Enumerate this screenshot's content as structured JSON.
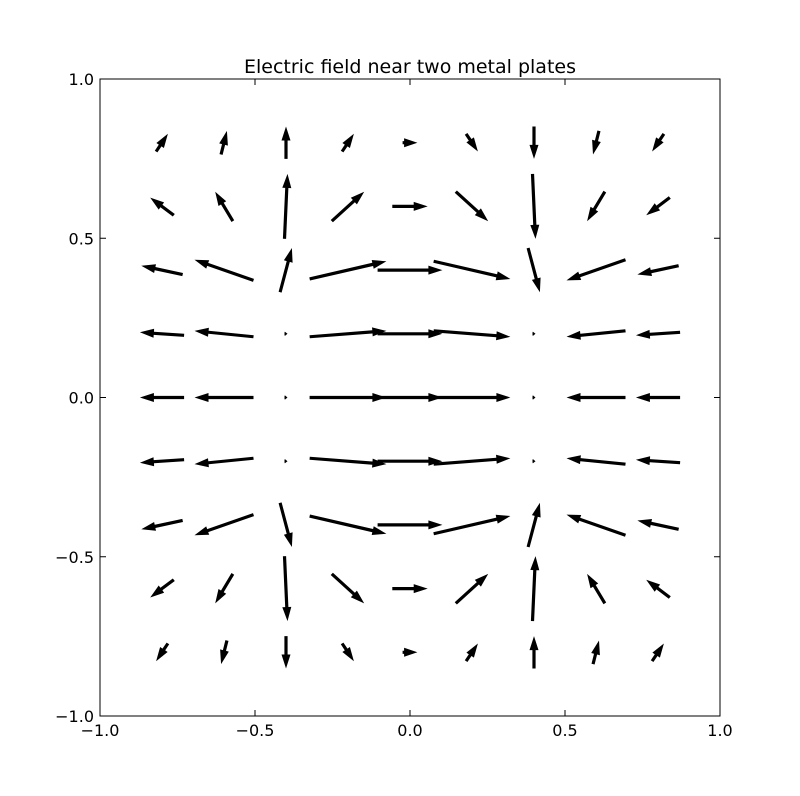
{
  "chart_data": {
    "type": "quiver",
    "title": "Electric field near two metal plates",
    "xlabel": "",
    "ylabel": "",
    "xlim": [
      -1.0,
      1.0
    ],
    "ylim": [
      -1.0,
      1.0
    ],
    "grid": false,
    "xticks": [
      -1.0,
      -0.5,
      0.0,
      0.5,
      1.0
    ],
    "xtick_labels": [
      "−1.0",
      "−0.5",
      "0.0",
      "0.5",
      "1.0"
    ],
    "yticks": [
      -1.0,
      -0.5,
      0.0,
      0.5,
      1.0
    ],
    "ytick_labels": [
      "−1.0",
      "−0.5",
      "0.0",
      "0.5",
      "1.0"
    ],
    "grid_x": [
      -0.8,
      -0.6,
      -0.4,
      -0.2,
      0.0,
      0.2,
      0.4,
      0.6,
      0.8
    ],
    "grid_y": [
      0.8,
      0.6,
      0.4,
      0.2,
      0.0,
      -0.2,
      -0.4,
      -0.6,
      -0.8
    ],
    "vectors_u": [
      [
        0.04,
        0.02,
        0.0,
        0.04,
        0.05,
        0.04,
        0.0,
        -0.02,
        -0.04
      ],
      [
        -0.08,
        -0.06,
        0.01,
        0.11,
        0.12,
        0.11,
        0.01,
        -0.06,
        -0.08
      ],
      [
        -0.14,
        -0.2,
        0.04,
        0.26,
        0.22,
        0.26,
        0.04,
        -0.2,
        -0.14
      ],
      [
        -0.15,
        -0.2,
        0.01,
        0.26,
        0.22,
        0.26,
        0.01,
        -0.2,
        -0.15
      ],
      [
        -0.15,
        -0.2,
        0.01,
        0.26,
        0.22,
        0.26,
        0.01,
        -0.2,
        -0.15
      ],
      [
        -0.15,
        -0.2,
        0.01,
        0.26,
        0.22,
        0.26,
        0.01,
        -0.2,
        -0.15
      ],
      [
        -0.14,
        -0.2,
        0.04,
        0.26,
        0.22,
        0.26,
        0.04,
        -0.2,
        -0.14
      ],
      [
        -0.08,
        -0.06,
        0.01,
        0.11,
        0.12,
        0.11,
        0.01,
        -0.06,
        -0.08
      ],
      [
        -0.04,
        -0.02,
        0.0,
        0.04,
        0.05,
        0.04,
        0.0,
        0.02,
        0.04
      ]
    ],
    "vectors_v": [
      [
        0.06,
        0.08,
        0.11,
        0.06,
        0.0,
        -0.06,
        -0.11,
        -0.08,
        -0.06
      ],
      [
        0.06,
        0.1,
        0.22,
        0.1,
        0.0,
        -0.1,
        -0.22,
        -0.1,
        -0.06
      ],
      [
        0.03,
        0.07,
        0.15,
        0.06,
        0.0,
        -0.06,
        -0.15,
        -0.07,
        -0.03
      ],
      [
        0.01,
        0.02,
        0.0,
        0.02,
        0.0,
        -0.02,
        0.0,
        -0.02,
        -0.01
      ],
      [
        0.0,
        0.0,
        0.0,
        0.0,
        0.0,
        0.0,
        0.0,
        0.0,
        0.0
      ],
      [
        -0.01,
        -0.02,
        0.0,
        -0.02,
        0.0,
        0.02,
        0.0,
        0.02,
        0.01
      ],
      [
        -0.03,
        -0.07,
        -0.15,
        -0.06,
        0.0,
        0.06,
        0.15,
        0.07,
        0.03
      ],
      [
        -0.06,
        -0.1,
        -0.22,
        -0.1,
        0.0,
        0.1,
        0.22,
        0.1,
        0.06
      ],
      [
        -0.06,
        -0.08,
        -0.11,
        -0.06,
        0.0,
        0.06,
        0.11,
        0.08,
        0.06
      ]
    ],
    "arrow_color": "#000000",
    "axes_color": "#000000",
    "background_color": "#ffffff"
  }
}
